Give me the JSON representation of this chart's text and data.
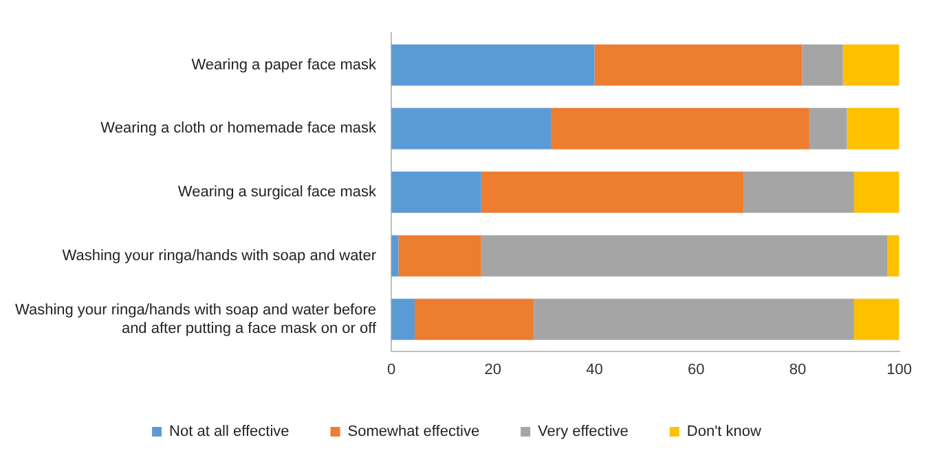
{
  "chart_data": {
    "type": "bar",
    "orientation": "horizontal",
    "stacked": true,
    "categories": [
      "Wearing a paper face mask",
      "Wearing a cloth or homemade face mask",
      "Wearing a surgical face mask",
      "Washing your ringa/hands with soap and water",
      "Washing your ringa/hands with soap and water before and after putting a face mask on or off"
    ],
    "series": [
      {
        "name": "Not at all effective",
        "color": "#5b9bd5",
        "values": [
          40,
          31.4,
          17.7,
          1.4,
          4.6
        ]
      },
      {
        "name": "Somewhat effective",
        "color": "#ed7d31",
        "values": [
          40.9,
          50.9,
          51.7,
          16.3,
          23.4
        ]
      },
      {
        "name": "Very effective",
        "color": "#a5a5a5",
        "values": [
          8,
          7.4,
          21.7,
          80,
          63.1
        ]
      },
      {
        "name": "Don't know",
        "color": "#ffc000",
        "values": [
          11.1,
          10.3,
          8.9,
          2.3,
          8.9
        ]
      }
    ],
    "xlim": [
      0,
      100
    ],
    "xticks": [
      0,
      20,
      40,
      60,
      80,
      100
    ],
    "grid": false,
    "legend": "bottom"
  }
}
